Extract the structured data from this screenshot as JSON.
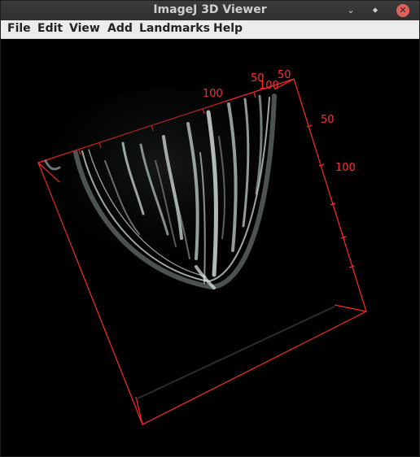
{
  "window": {
    "title": "ImageJ 3D Viewer"
  },
  "window_controls": {
    "minimize": "⌄",
    "maximize": "⬥",
    "close": "✕"
  },
  "menu": {
    "file": "File",
    "edit": "Edit",
    "view": "View",
    "add": "Add",
    "landmarks": "Landmarks",
    "help": "Help"
  },
  "viewer": {
    "background": "#000000",
    "bbox_color": "#ff2a2a",
    "axis_labels": {
      "top_50_a": "50",
      "top_50_b": "50",
      "top_100_a": "100",
      "top_100_b": "100",
      "right_50": "50",
      "right_100": "100"
    }
  }
}
